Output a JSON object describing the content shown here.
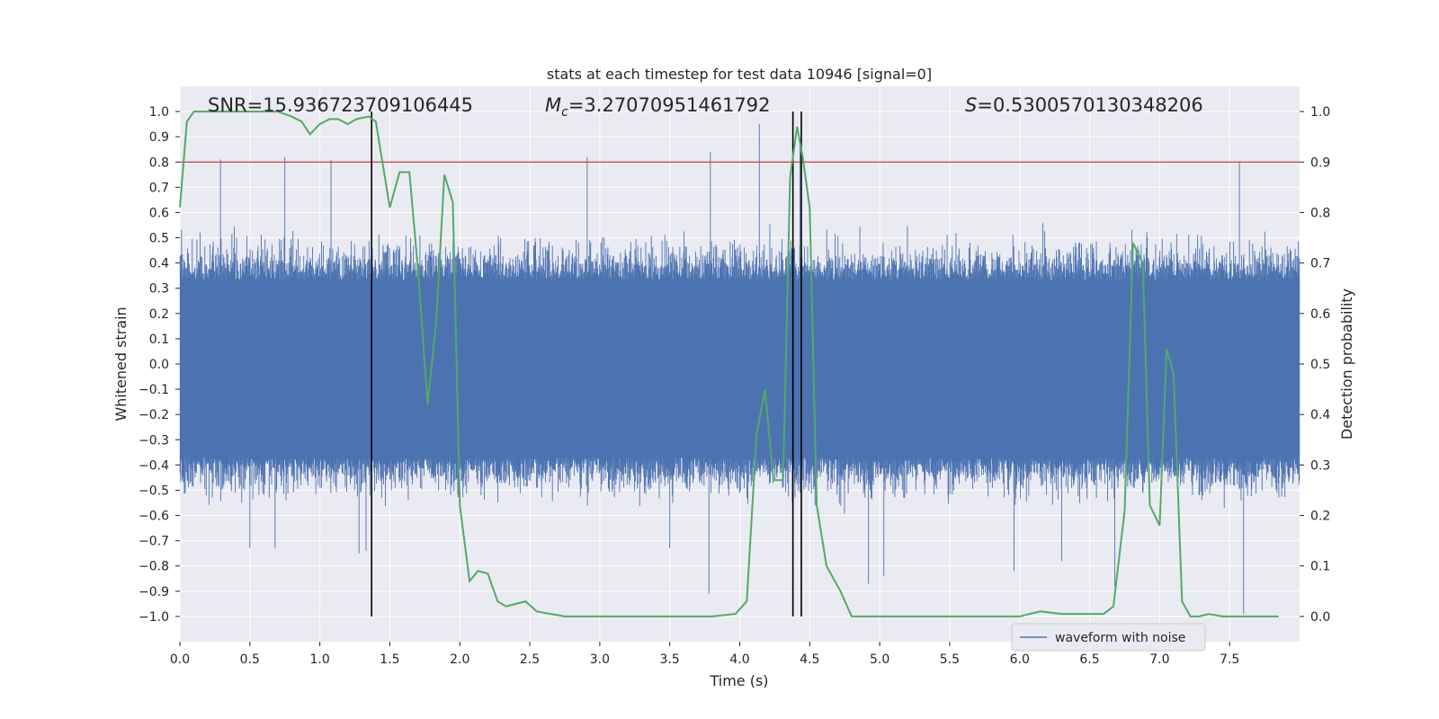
{
  "colors": {
    "background": "#eaeaf2",
    "grid": "#ffffff",
    "waveform": "#4c72b0",
    "probability": "#55a868",
    "threshold": "#c44e52",
    "marker": "#000000",
    "text": "#262626"
  },
  "chart_data": {
    "type": "line",
    "title": "stats at each timestep for test data 10946 [signal=0]",
    "xlabel": "Time (s)",
    "ylabel": "Whitened strain",
    "y2label": "Detection probability",
    "xlim": [
      0.0,
      8.0
    ],
    "ylim": [
      -1.1,
      1.1
    ],
    "y2lim": [
      -0.05,
      1.05
    ],
    "xticks": [
      "0.0",
      "0.5",
      "1.0",
      "1.5",
      "2.0",
      "2.5",
      "3.0",
      "3.5",
      "4.0",
      "4.5",
      "5.0",
      "5.5",
      "6.0",
      "6.5",
      "7.0",
      "7.5"
    ],
    "yticks": [
      "1.0",
      "0.9",
      "0.8",
      "0.7",
      "0.6",
      "0.5",
      "0.4",
      "0.3",
      "0.2",
      "0.1",
      "0.0",
      "-0.1",
      "-0.2",
      "-0.3",
      "-0.4",
      "-0.5",
      "-0.6",
      "-0.7",
      "-0.8",
      "-0.9",
      "-1.0"
    ],
    "y2ticks": [
      "1.0",
      "0.9",
      "0.8",
      "0.7",
      "0.6",
      "0.5",
      "0.4",
      "0.3",
      "0.2",
      "0.1",
      "0.0"
    ],
    "annotations": {
      "snr_label": "SNR=15.936723709106445",
      "mc_symbol": "M",
      "mc_sub": "c",
      "mc_value": "=3.27070951461792",
      "s_symbol": "S",
      "s_value": "=0.5300570130348206"
    },
    "legend": {
      "label": "waveform with noise",
      "position": "lower-right"
    },
    "threshold_probability": 0.9,
    "marker_times": [
      1.37,
      4.38,
      4.44
    ],
    "waveform": {
      "name": "waveform with noise",
      "typical_range": [
        -0.5,
        0.5
      ],
      "spikes": [
        {
          "t": 0.29,
          "v": 0.81
        },
        {
          "t": 0.75,
          "v": 0.82
        },
        {
          "t": 1.08,
          "v": 0.81
        },
        {
          "t": 2.91,
          "v": 0.82
        },
        {
          "t": 3.79,
          "v": 0.84
        },
        {
          "t": 4.14,
          "v": 0.95
        },
        {
          "t": 4.43,
          "v": 0.89
        },
        {
          "t": 7.57,
          "v": 0.8
        },
        {
          "t": 0.5,
          "v": -0.73
        },
        {
          "t": 0.68,
          "v": -0.73
        },
        {
          "t": 1.28,
          "v": -0.75
        },
        {
          "t": 1.33,
          "v": -0.74
        },
        {
          "t": 3.78,
          "v": -0.91
        },
        {
          "t": 4.92,
          "v": -0.87
        },
        {
          "t": 5.03,
          "v": -0.84
        },
        {
          "t": 5.96,
          "v": -0.82
        },
        {
          "t": 6.68,
          "v": -0.88
        },
        {
          "t": 7.6,
          "v": -0.99
        },
        {
          "t": 3.5,
          "v": -0.73
        },
        {
          "t": 6.3,
          "v": -0.78
        }
      ]
    },
    "series": [
      {
        "name": "detection probability",
        "axis": "right",
        "x": [
          0.0,
          0.05,
          0.1,
          0.2,
          0.3,
          0.4,
          0.5,
          0.6,
          0.7,
          0.8,
          0.87,
          0.93,
          1.0,
          1.07,
          1.13,
          1.2,
          1.26,
          1.35,
          1.4,
          1.5,
          1.57,
          1.64,
          1.7,
          1.77,
          1.83,
          1.89,
          1.95,
          2.0,
          2.07,
          2.13,
          2.2,
          2.27,
          2.33,
          2.4,
          2.47,
          2.55,
          2.65,
          2.75,
          2.85,
          3.0,
          3.2,
          3.4,
          3.6,
          3.8,
          3.97,
          4.05,
          4.12,
          4.18,
          4.24,
          4.31,
          4.36,
          4.41,
          4.45,
          4.5,
          4.55,
          4.62,
          4.72,
          4.8,
          5.0,
          5.5,
          6.0,
          6.07,
          6.15,
          6.3,
          6.45,
          6.6,
          6.67,
          6.75,
          6.81,
          6.88,
          6.93,
          7.0,
          7.05,
          7.1,
          7.16,
          7.22,
          7.28,
          7.35,
          7.45,
          7.55,
          7.7,
          7.85
        ],
        "y": [
          0.81,
          0.98,
          1.0,
          1.0,
          1.0,
          1.0,
          1.0,
          1.0,
          1.0,
          0.99,
          0.98,
          0.955,
          0.975,
          0.985,
          0.985,
          0.975,
          0.985,
          0.99,
          0.98,
          0.81,
          0.88,
          0.88,
          0.69,
          0.42,
          0.58,
          0.875,
          0.82,
          0.22,
          0.07,
          0.09,
          0.085,
          0.03,
          0.02,
          0.025,
          0.03,
          0.01,
          0.005,
          0.0,
          0.0,
          0.0,
          0.0,
          0.0,
          0.0,
          0.0,
          0.005,
          0.03,
          0.36,
          0.45,
          0.27,
          0.27,
          0.87,
          0.97,
          0.91,
          0.81,
          0.22,
          0.1,
          0.05,
          0.0,
          0.0,
          0.0,
          0.0,
          0.005,
          0.01,
          0.005,
          0.005,
          0.005,
          0.02,
          0.21,
          0.74,
          0.7,
          0.22,
          0.18,
          0.53,
          0.48,
          0.03,
          0.0,
          0.0,
          0.005,
          0.0,
          0.0,
          0.0,
          0.0
        ]
      }
    ]
  }
}
